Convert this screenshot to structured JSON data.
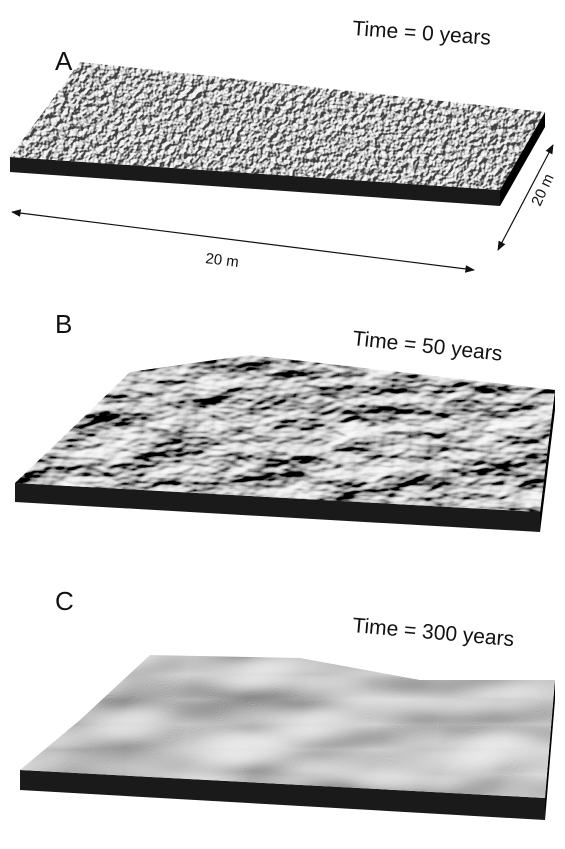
{
  "panels": [
    {
      "label": "A",
      "time": "Time = 0 years"
    },
    {
      "label": "B",
      "time": "Time = 50 years"
    },
    {
      "label": "C",
      "time": "Time = 300 years"
    }
  ],
  "dimensions": {
    "width": "20 m",
    "depth": "20 m"
  }
}
